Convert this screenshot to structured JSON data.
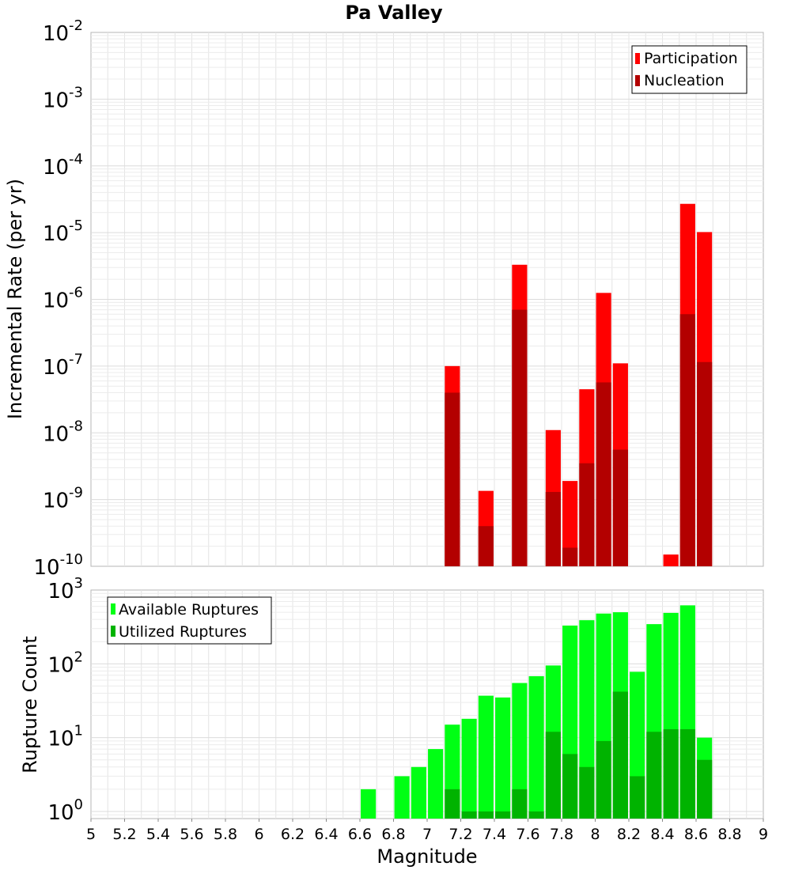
{
  "chart_data": [
    {
      "type": "bar",
      "title": "Pa Valley",
      "xlabel": "",
      "ylabel": "Incremental Rate (per yr)",
      "yscale": "log",
      "xlim": [
        5,
        9
      ],
      "ylim": [
        1e-10,
        0.01
      ],
      "ytick_exponents": [
        -10,
        -9,
        -8,
        -7,
        -6,
        -5,
        -4,
        -3,
        -2
      ],
      "legend_position": "top-right",
      "bar_width": 0.09,
      "series": [
        {
          "name": "Participation",
          "color": "#ff0000",
          "points": [
            {
              "x": 7.15,
              "y": 1e-07
            },
            {
              "x": 7.35,
              "y": 1.35e-09
            },
            {
              "x": 7.55,
              "y": 3.3e-06
            },
            {
              "x": 7.75,
              "y": 1.1e-08
            },
            {
              "x": 7.85,
              "y": 1.9e-09
            },
            {
              "x": 7.95,
              "y": 4.5e-08
            },
            {
              "x": 8.05,
              "y": 1.25e-06
            },
            {
              "x": 8.15,
              "y": 1.1e-07
            },
            {
              "x": 8.45,
              "y": 1.5e-10
            },
            {
              "x": 8.55,
              "y": 2.7e-05
            },
            {
              "x": 8.65,
              "y": 1.02e-05
            }
          ]
        },
        {
          "name": "Nucleation",
          "color": "#b30000",
          "points": [
            {
              "x": 7.15,
              "y": 4e-08
            },
            {
              "x": 7.35,
              "y": 4e-10
            },
            {
              "x": 7.55,
              "y": 7e-07
            },
            {
              "x": 7.75,
              "y": 1.3e-09
            },
            {
              "x": 7.85,
              "y": 1.9e-10
            },
            {
              "x": 7.95,
              "y": 3.5e-09
            },
            {
              "x": 8.05,
              "y": 5.7e-08
            },
            {
              "x": 8.15,
              "y": 5.6e-09
            },
            {
              "x": 8.55,
              "y": 6e-07
            },
            {
              "x": 8.65,
              "y": 1.15e-07
            }
          ]
        }
      ]
    },
    {
      "type": "bar",
      "title": "",
      "xlabel": "Magnitude",
      "ylabel": "Rupture Count",
      "yscale": "log",
      "xlim": [
        5,
        9
      ],
      "ylim": [
        0.8,
        1000
      ],
      "ytick_exponents": [
        0,
        1,
        2,
        3
      ],
      "xticks": [
        "5",
        "5.2",
        "5.4",
        "5.6",
        "5.8",
        "6",
        "6.2",
        "6.4",
        "6.6",
        "6.8",
        "7",
        "7.2",
        "7.4",
        "7.6",
        "7.8",
        "8",
        "8.2",
        "8.4",
        "8.6",
        "8.8",
        "9"
      ],
      "legend_position": "top-left",
      "bar_width": 0.09,
      "series": [
        {
          "name": "Available Ruptures",
          "color": "#00ff14",
          "points": [
            {
              "x": 6.65,
              "y": 2
            },
            {
              "x": 6.85,
              "y": 3
            },
            {
              "x": 6.95,
              "y": 4
            },
            {
              "x": 7.05,
              "y": 7
            },
            {
              "x": 7.15,
              "y": 15
            },
            {
              "x": 7.25,
              "y": 18
            },
            {
              "x": 7.35,
              "y": 37
            },
            {
              "x": 7.45,
              "y": 35
            },
            {
              "x": 7.55,
              "y": 55
            },
            {
              "x": 7.65,
              "y": 68
            },
            {
              "x": 7.75,
              "y": 95
            },
            {
              "x": 7.85,
              "y": 330
            },
            {
              "x": 7.95,
              "y": 390
            },
            {
              "x": 8.05,
              "y": 480
            },
            {
              "x": 8.15,
              "y": 500
            },
            {
              "x": 8.25,
              "y": 78
            },
            {
              "x": 8.35,
              "y": 345
            },
            {
              "x": 8.45,
              "y": 490
            },
            {
              "x": 8.55,
              "y": 620
            },
            {
              "x": 8.65,
              "y": 10
            }
          ]
        },
        {
          "name": "Utilized Ruptures",
          "color": "#00b300",
          "points": [
            {
              "x": 7.15,
              "y": 2
            },
            {
              "x": 7.25,
              "y": 1
            },
            {
              "x": 7.35,
              "y": 1
            },
            {
              "x": 7.45,
              "y": 1
            },
            {
              "x": 7.55,
              "y": 2
            },
            {
              "x": 7.65,
              "y": 1
            },
            {
              "x": 7.75,
              "y": 12
            },
            {
              "x": 7.85,
              "y": 6
            },
            {
              "x": 7.95,
              "y": 4
            },
            {
              "x": 8.05,
              "y": 9
            },
            {
              "x": 8.15,
              "y": 42
            },
            {
              "x": 8.25,
              "y": 3
            },
            {
              "x": 8.35,
              "y": 12
            },
            {
              "x": 8.45,
              "y": 13
            },
            {
              "x": 8.55,
              "y": 13
            },
            {
              "x": 8.65,
              "y": 5
            }
          ]
        }
      ]
    }
  ]
}
